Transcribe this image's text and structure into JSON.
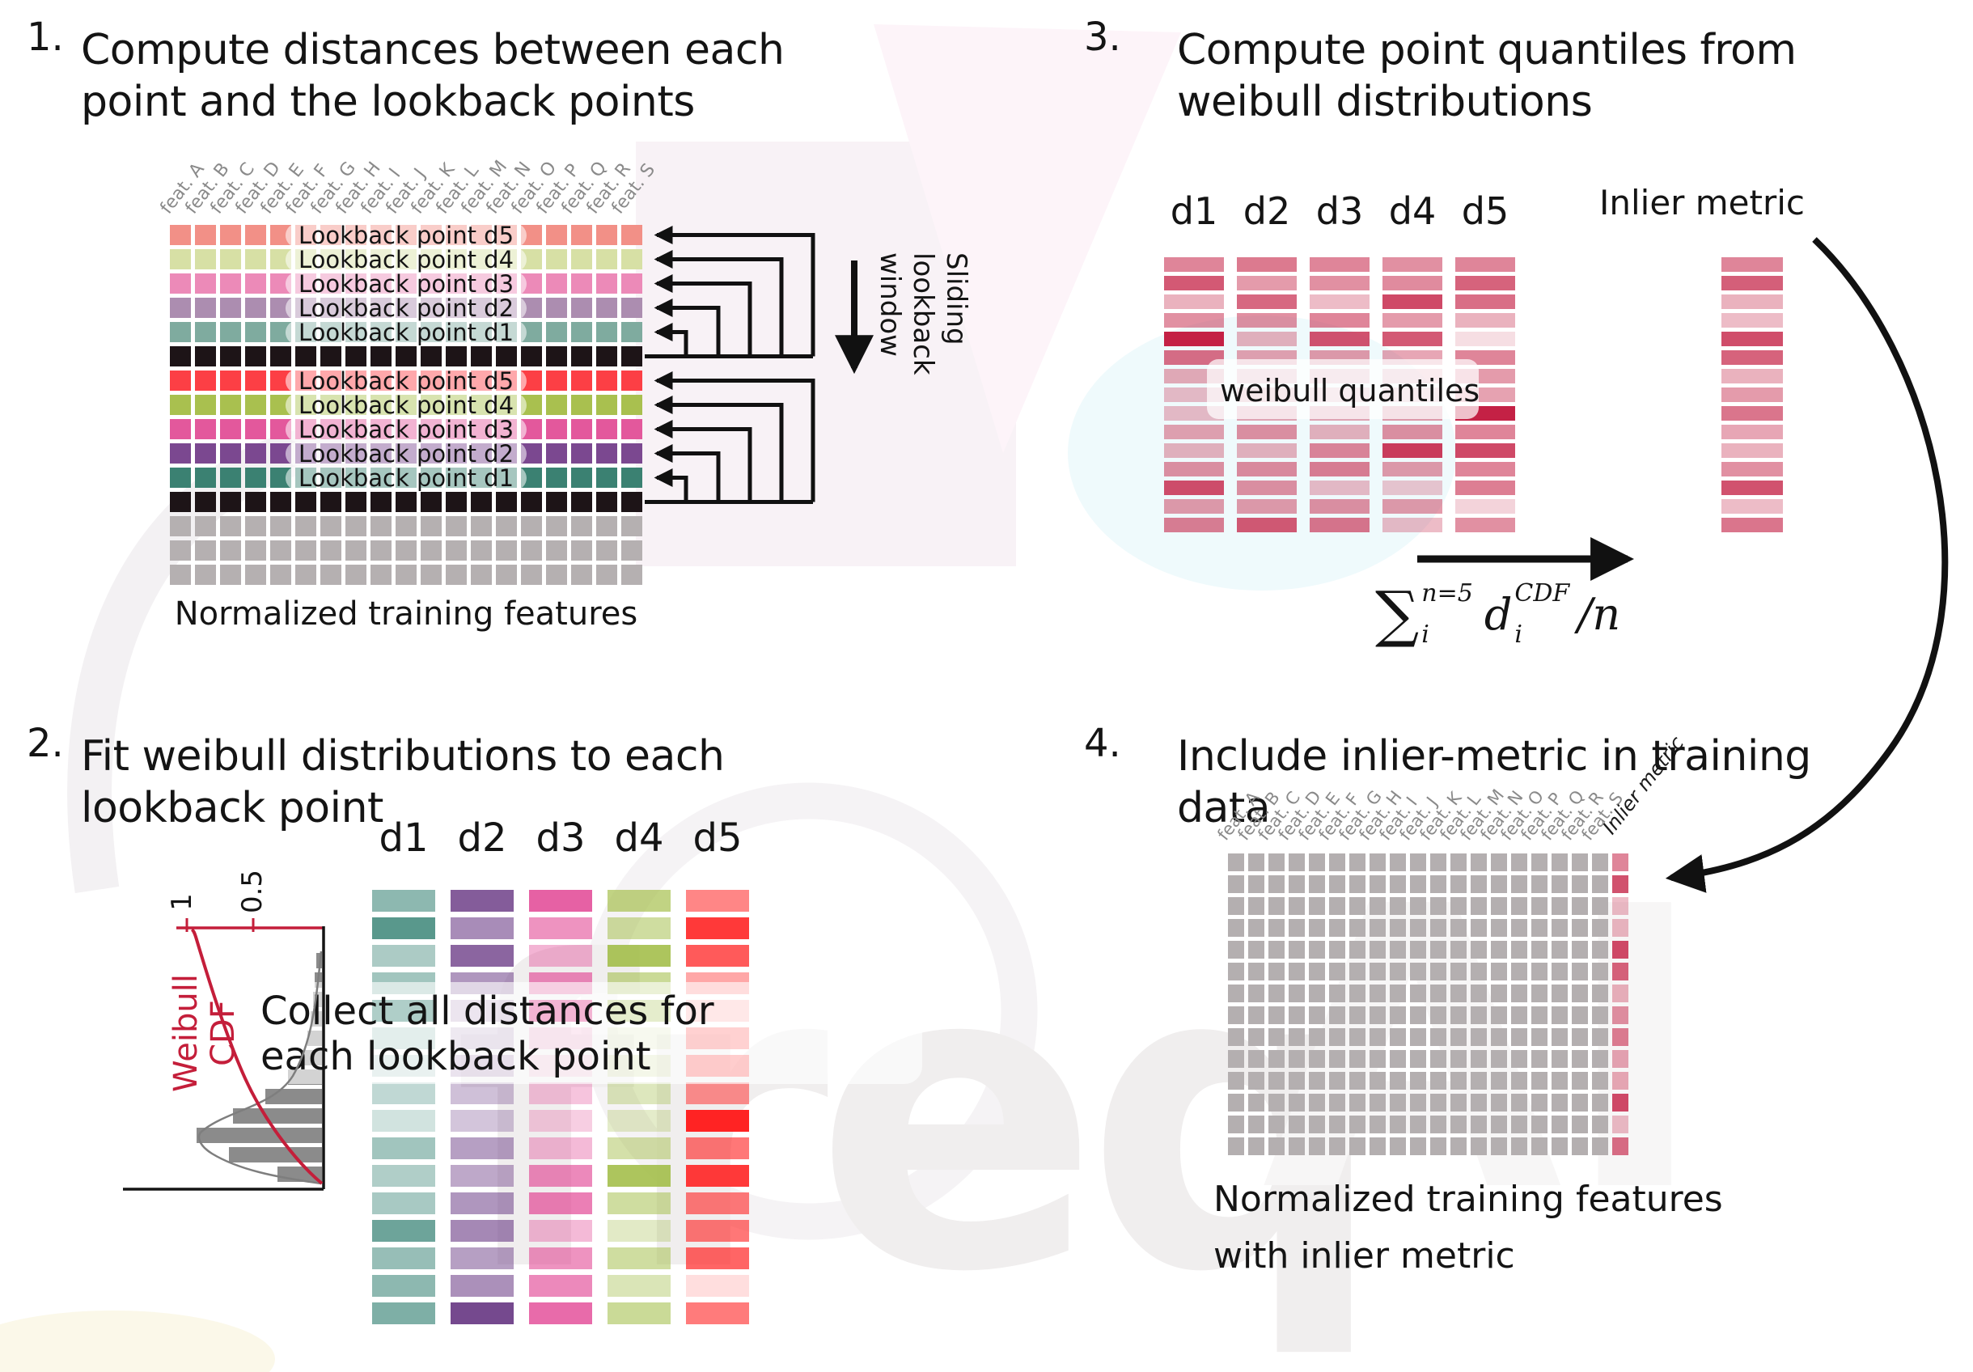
{
  "figure": {
    "steps": [
      {
        "num": "1.",
        "line1": "Compute distances between each",
        "line2": "point and the lookback points"
      },
      {
        "num": "2.",
        "line1": "Fit weibull distributions to each",
        "line2": "lookback point"
      },
      {
        "num": "3.",
        "line1": "Compute point quantiles from",
        "line2": "weibull distributions"
      },
      {
        "num": "4.",
        "line1": "Include inlier-metric in training",
        "line2": "data"
      }
    ]
  },
  "features": [
    "feat. A",
    "feat. B",
    "feat. C",
    "feat. D",
    "feat. E",
    "feat. F",
    "feat. G",
    "feat. H",
    "feat. I",
    "feat. J",
    "feat. K",
    "feat. L",
    "feat. M",
    "feat. N",
    "feat. O",
    "feat. P",
    "feat. Q",
    "feat. R",
    "feat. S"
  ],
  "grid1": {
    "caption": "Normalized training features",
    "cols": 19,
    "rows": [
      {
        "color": "#f29087",
        "label": "Lookback point d5"
      },
      {
        "color": "#d7e0a5",
        "label": "Lookback point d4"
      },
      {
        "color": "#ec8ab8",
        "label": "Lookback point d3"
      },
      {
        "color": "#ac8db0",
        "label": "Lookback point d2"
      },
      {
        "color": "#7fab9f",
        "label": "Lookback point d1"
      },
      {
        "color": "#1d1417",
        "label": null
      },
      {
        "color": "#fc3f45",
        "label": "Lookback point d5"
      },
      {
        "color": "#a9c04f",
        "label": "Lookback point d4"
      },
      {
        "color": "#e3589c",
        "label": "Lookback point d3"
      },
      {
        "color": "#7b4890",
        "label": "Lookback point d2"
      },
      {
        "color": "#3b8172",
        "label": "Lookback point d1"
      },
      {
        "color": "#1d1417",
        "label": null
      },
      {
        "color": "#b5b0b1",
        "label": null
      },
      {
        "color": "#b5b0b1",
        "label": null
      },
      {
        "color": "#b5b0b1",
        "label": null
      }
    ]
  },
  "sliding": {
    "line1": "Sliding",
    "line2": "lookback",
    "line3": "window"
  },
  "step2": {
    "headers": [
      "d1",
      "d2",
      "d3",
      "d4",
      "d5"
    ],
    "colors": [
      "#2f7e6f",
      "#6e3f88",
      "#e03a8d",
      "#9fbb41",
      "#ff2323"
    ],
    "alphas": [
      [
        0.55,
        0.8,
        0.4,
        0.45,
        1,
        0.35,
        0.28,
        0.3,
        0.22,
        0.45,
        0.38,
        0.42,
        0.7,
        0.5,
        0.55,
        0.62
      ],
      [
        0.85,
        0.6,
        0.8,
        0.55,
        0.35,
        0.3,
        0.38,
        0.33,
        0.3,
        0.5,
        0.45,
        0.55,
        0.62,
        0.5,
        0.58,
        0.95
      ],
      [
        0.8,
        0.55,
        0.38,
        0.6,
        1,
        0.28,
        0.2,
        0.3,
        0.25,
        0.35,
        0.6,
        0.65,
        0.35,
        0.55,
        0.6,
        0.75
      ],
      [
        0.65,
        0.5,
        0.85,
        0.55,
        0.7,
        0.22,
        0.3,
        0.35,
        0.28,
        0.45,
        0.85,
        0.5,
        0.3,
        0.5,
        0.38,
        0.55
      ],
      [
        0.55,
        0.9,
        0.75,
        0.4,
        0.28,
        0.55,
        0.6,
        0.5,
        1,
        0.62,
        0.9,
        0.6,
        0.62,
        0.7,
        0.15,
        0.6
      ]
    ],
    "overlay1": "Collect all distances for",
    "overlay2": "each lookback point",
    "plot": {
      "label": "Weibull CDF",
      "tick_1": "1",
      "tick_05": "0.5",
      "bars": [
        7,
        9,
        11,
        14,
        18,
        26,
        42,
        70,
        110,
        155,
        115,
        55
      ]
    }
  },
  "step3": {
    "headers": [
      "d1",
      "d2",
      "d3",
      "d4",
      "d5"
    ],
    "base_color": "#c42145",
    "alphas": [
      [
        0.55,
        0.75,
        0.35,
        0.5,
        1,
        0.65,
        0.38,
        0.3,
        0.3,
        0.42,
        0.35,
        0.5,
        0.8,
        0.45,
        0.58
      ],
      [
        0.6,
        0.45,
        0.68,
        0.5,
        0.35,
        0.42,
        0.3,
        0.35,
        0.4,
        0.5,
        0.35,
        0.52,
        0.5,
        0.45,
        0.75
      ],
      [
        0.55,
        0.5,
        0.3,
        0.55,
        0.78,
        0.45,
        0.3,
        0.25,
        0.4,
        0.35,
        0.55,
        0.58,
        0.3,
        0.5,
        0.62
      ],
      [
        0.5,
        0.52,
        0.82,
        0.45,
        0.75,
        0.4,
        0.3,
        0.25,
        0.45,
        0.5,
        0.88,
        0.45,
        0.25,
        0.45,
        0.3
      ],
      [
        0.55,
        0.7,
        0.65,
        0.35,
        0.15,
        0.55,
        0.45,
        0.42,
        1,
        0.55,
        0.82,
        0.55,
        0.58,
        0.2,
        0.5
      ]
    ],
    "overlay": "weibull quantiles",
    "inlier_label": "Inlier metric",
    "inlier_alphas": [
      0.55,
      0.72,
      0.35,
      0.3,
      0.8,
      0.7,
      0.35,
      0.45,
      0.62,
      0.4,
      0.35,
      0.5,
      0.78,
      0.3,
      0.62
    ],
    "formula": {
      "sum": "∑",
      "sum_sup": "n=5",
      "sum_sub": "i",
      "var": "d",
      "var_sup": "CDF",
      "var_sub": "i",
      "tail": "/n"
    }
  },
  "step4": {
    "inlier_header": "Inlier metric",
    "cell_color": "#b4afb0",
    "rows": 14,
    "inlier_base": "#c42145",
    "inlier_alphas": [
      0.55,
      0.78,
      0.3,
      0.32,
      0.82,
      0.7,
      0.35,
      0.5,
      0.58,
      0.4,
      0.38,
      0.82,
      0.3,
      0.65
    ],
    "caption1": "Normalized training features",
    "caption2": "with inlier metric"
  },
  "watermark": {
    "text1": "freq",
    "text2": "AI"
  }
}
